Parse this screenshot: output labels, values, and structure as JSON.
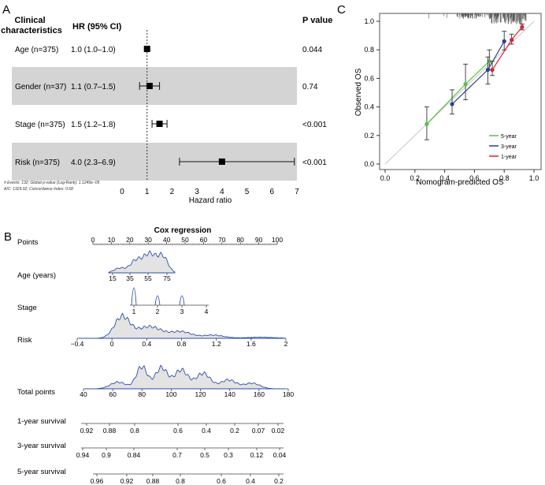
{
  "panels": {
    "a": "A",
    "b": "B",
    "c": "C"
  },
  "chart_data": [
    {
      "id": "forest",
      "type": "forest",
      "headers": {
        "characteristic": "Clinical\ncharacteristics",
        "hr": "HR (95% CI)",
        "p": "P value"
      },
      "rows": [
        {
          "label": "Age (n=375)",
          "hr_text": "1.0 (1.0–1.0)",
          "hr": 1.0,
          "lo": 1.0,
          "hi": 1.0,
          "p": "0.044",
          "shaded": false
        },
        {
          "label": "Gender (n=37)",
          "hr_text": "1.1 (0.7–1.5)",
          "hr": 1.1,
          "lo": 0.7,
          "hi": 1.5,
          "p": "0.74",
          "shaded": true
        },
        {
          "label": "Stage (n=375)",
          "hr_text": "1.5 (1.2–1.8)",
          "hr": 1.5,
          "lo": 1.2,
          "hi": 1.8,
          "p": "<0.001",
          "shaded": false
        },
        {
          "label": "Risk (n=375)",
          "hr_text": "4.0 (2.3–6.9)",
          "hr": 4.0,
          "lo": 2.3,
          "hi": 6.9,
          "p": "<0.001",
          "shaded": true
        }
      ],
      "reference": 1,
      "xlim": [
        0,
        7
      ],
      "xticks": [
        0,
        1,
        2,
        3,
        4,
        5,
        6,
        7
      ],
      "xlabel": "Hazard ratio",
      "footnote1": "# Events: 132; Global p-value (Log-Rank): 1.1249e−09",
      "footnote2": "AIC: 1329.02; Concordance Index: 0.68"
    },
    {
      "id": "calibration",
      "type": "line",
      "xlabel": "Nomogram-predicted OS",
      "ylabel": "Observed OS",
      "xlim": [
        0,
        1
      ],
      "ylim": [
        0,
        1
      ],
      "xticks": [
        "0.0",
        "0.2",
        "0.4",
        "0.6",
        "0.8",
        "1.0"
      ],
      "yticks": [
        "0.0",
        "0.2",
        "0.4",
        "0.6",
        "0.8",
        "1.0"
      ],
      "legend": [
        "5-year",
        "3-year",
        "1-year"
      ],
      "series": [
        {
          "name": "5-year",
          "color": "#5bbf45",
          "x": [
            0.28,
            0.54,
            0.7
          ],
          "y": [
            0.28,
            0.56,
            0.72
          ],
          "lo": [
            0.17,
            0.45,
            0.66
          ],
          "hi": [
            0.4,
            0.7,
            0.8
          ]
        },
        {
          "name": "3-year",
          "color": "#2c3f94",
          "x": [
            0.45,
            0.69,
            0.8
          ],
          "y": [
            0.42,
            0.66,
            0.86
          ],
          "lo": [
            0.35,
            0.56,
            0.8
          ],
          "hi": [
            0.52,
            0.75,
            0.93
          ]
        },
        {
          "name": "1-year",
          "color": "#d9232e",
          "x": [
            0.72,
            0.85,
            0.92
          ],
          "y": [
            0.66,
            0.87,
            0.96
          ],
          "lo": [
            0.62,
            0.84,
            0.94
          ],
          "hi": [
            0.72,
            0.91,
            0.98
          ]
        }
      ]
    },
    {
      "id": "nomogram",
      "type": "nomogram",
      "title": "Cox regression",
      "axes": [
        {
          "label": "Points",
          "ticks": [
            "0",
            "10",
            "20",
            "30",
            "40",
            "50",
            "60",
            "70",
            "80",
            "90",
            "100"
          ]
        },
        {
          "label": "Age (years)",
          "ticks": [
            "15",
            "35",
            "55",
            "75"
          ]
        },
        {
          "label": "Stage",
          "ticks": [
            "1",
            "2",
            "3",
            "4"
          ]
        },
        {
          "label": "Risk",
          "ticks": [
            "−0.4",
            "0",
            "0.4",
            "0.8",
            "1.2",
            "1.6",
            "2"
          ]
        },
        {
          "label": "Total points",
          "ticks": [
            "40",
            "60",
            "80",
            "100",
            "120",
            "140",
            "160",
            "180"
          ]
        },
        {
          "label": "1-year survival",
          "ticks": [
            "0.92",
            "0.88",
            "0.8",
            "0.6",
            "0.4",
            "0.2",
            "0.07",
            "0.02"
          ]
        },
        {
          "label": "3-year survival",
          "ticks": [
            "0.94",
            "0.9",
            "0.84",
            "0.7",
            "0.5",
            "0.3",
            "0.12",
            "0.04"
          ]
        },
        {
          "label": "5-year survival",
          "ticks": [
            "0.96",
            "0.92",
            "0.88",
            "0.8",
            "0.6",
            "0.4",
            "0.2"
          ]
        }
      ]
    }
  ]
}
